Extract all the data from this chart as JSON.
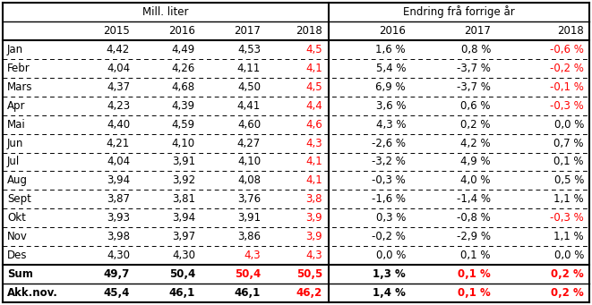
{
  "col_headers_left": [
    "",
    "2015",
    "2016",
    "2017",
    "2018"
  ],
  "col_headers_right": [
    "2016",
    "2017",
    "2018"
  ],
  "group_header_left": "Mill. liter",
  "group_header_right": "Endring frå forrige år",
  "row_labels": [
    "Jan",
    "Febr",
    "Mars",
    "Apr",
    "Mai",
    "Jun",
    "Jul",
    "Aug",
    "Sept",
    "Okt",
    "Nov",
    "Des"
  ],
  "data_left": [
    [
      "4,42",
      "4,49",
      "4,53",
      "4,5"
    ],
    [
      "4,04",
      "4,26",
      "4,11",
      "4,1"
    ],
    [
      "4,37",
      "4,68",
      "4,50",
      "4,5"
    ],
    [
      "4,23",
      "4,39",
      "4,41",
      "4,4"
    ],
    [
      "4,40",
      "4,59",
      "4,60",
      "4,6"
    ],
    [
      "4,21",
      "4,10",
      "4,27",
      "4,3"
    ],
    [
      "4,04",
      "3,91",
      "4,10",
      "4,1"
    ],
    [
      "3,94",
      "3,92",
      "4,08",
      "4,1"
    ],
    [
      "3,87",
      "3,81",
      "3,76",
      "3,8"
    ],
    [
      "3,93",
      "3,94",
      "3,91",
      "3,9"
    ],
    [
      "3,98",
      "3,97",
      "3,86",
      "3,9"
    ],
    [
      "4,30",
      "4,30",
      "4,3",
      "4,3"
    ]
  ],
  "data_right": [
    [
      "1,6 %",
      "0,8 %",
      "-0,6 %"
    ],
    [
      "5,4 %",
      "-3,7 %",
      "-0,2 %"
    ],
    [
      "6,9 %",
      "-3,7 %",
      "-0,1 %"
    ],
    [
      "3,6 %",
      "0,6 %",
      "-0,3 %"
    ],
    [
      "4,3 %",
      "0,2 %",
      "0,0 %"
    ],
    [
      "-2,6 %",
      "4,2 %",
      "0,7 %"
    ],
    [
      "-3,2 %",
      "4,9 %",
      "0,1 %"
    ],
    [
      "-0,3 %",
      "4,0 %",
      "0,5 %"
    ],
    [
      "-1,6 %",
      "-1,4 %",
      "1,1 %"
    ],
    [
      "0,3 %",
      "-0,8 %",
      "-0,3 %"
    ],
    [
      "-0,2 %",
      "-2,9 %",
      "1,1 %"
    ],
    [
      "0,0 %",
      "0,1 %",
      "0,0 %"
    ]
  ],
  "sum_row": [
    "49,7",
    "50,4",
    "50,4",
    "50,5"
  ],
  "sum_row_right": [
    "1,3 %",
    "0,1 %",
    "0,2 %"
  ],
  "akknov_row": [
    "45,4",
    "46,1",
    "46,1",
    "46,2"
  ],
  "akknov_row_right": [
    "1,4 %",
    "0,1 %",
    "0,2 %"
  ],
  "background_color": "#ffffff",
  "normal_text": "#000000",
  "red_text": "#ff0000",
  "figsize": [
    6.61,
    3.41
  ],
  "dpi": 100
}
